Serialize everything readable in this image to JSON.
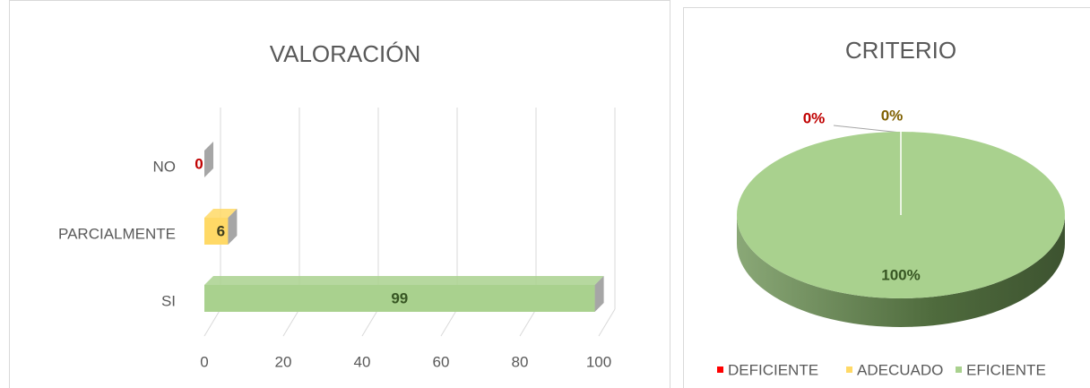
{
  "chart_data": [
    {
      "type": "bar3d",
      "title": "VALORACIÓN",
      "categories": [
        "NO",
        "PARCIALMENTE",
        "SI"
      ],
      "values": [
        0,
        6,
        99
      ],
      "colors": [
        "#b5605c",
        "#ffd966",
        "#a9d18e"
      ],
      "label_colors": [
        "#c00000",
        "#3f3f1f",
        "#375623"
      ],
      "xlim": [
        0,
        100
      ],
      "xticks": [
        0,
        20,
        40,
        60,
        80,
        100
      ],
      "grid": true
    },
    {
      "type": "pie3d",
      "title": "CRITERIO",
      "categories": [
        "DEFICIENTE",
        "ADECUADO",
        "EFICIENTE"
      ],
      "values": [
        0,
        0,
        100
      ],
      "value_labels": [
        "0%",
        "0%",
        "100%"
      ],
      "colors": [
        "#ff0000",
        "#ffd966",
        "#a9d18e"
      ],
      "label_colors": [
        "#c00000",
        "#7f6000",
        "#375623"
      ],
      "legend": "bottom"
    }
  ]
}
